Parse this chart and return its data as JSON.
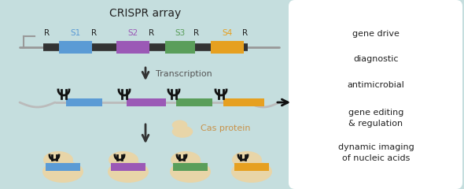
{
  "bg_color": "#c5dede",
  "title": "CRISPR array",
  "spacer_colors": [
    "#5b9bd5",
    "#9b59b6",
    "#5a9e5a",
    "#e6a020"
  ],
  "spacer_labels": [
    "S1",
    "S2",
    "S3",
    "S4"
  ],
  "spacer_label_colors": [
    "#5b9bd5",
    "#9b59b6",
    "#5a9e5a",
    "#e6a020"
  ],
  "repeat_label": "R",
  "repeat_color": "#222222",
  "dna_bar_color": "#333333",
  "right_box_labels": [
    "gene drive",
    "diagnostic",
    "antimicrobial",
    "gene editing\n& regulation",
    "dynamic imaging\nof nucleic acids"
  ],
  "right_box_color": "#ffffff",
  "transcription_text": "Transcription",
  "cas_protein_text": "Cas protein",
  "cas_protein_color": "#c8924a",
  "arrow_color": "#333333",
  "cas_blob_color": "#e8d5a8",
  "rna_backbone_color": "#bbbbbb",
  "rna_handle_color": "#111111"
}
